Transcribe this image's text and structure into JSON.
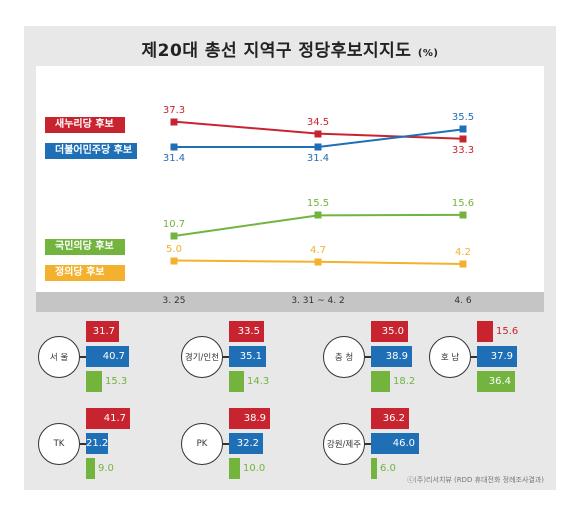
{
  "title": "제20대 총선 지역구 정당후보지지도",
  "title_unit": "(%)",
  "source": "ⓒ(주)리서치뷰 (RDD 휴대전화 정례조사결과)",
  "colors": {
    "saenuri": "#c8242f",
    "minju": "#1f6fb6",
    "gukmin": "#73b43f",
    "jeongui": "#f3b12d"
  },
  "chart_data": [
    {
      "type": "line",
      "x": [
        "3. 25",
        "3. 31 ~ 4. 2",
        "4. 6"
      ],
      "ylim": [
        0,
        40
      ],
      "series": [
        {
          "name": "새누리당 후보",
          "color": "#c8242f",
          "values": [
            37.3,
            34.5,
            33.3
          ],
          "labels": [
            "37.3",
            "34.5",
            "33.3"
          ]
        },
        {
          "name": "더불어민주당 후보",
          "color": "#1f6fb6",
          "values": [
            31.4,
            31.4,
            35.5
          ],
          "labels": [
            "31.4",
            "31.4",
            "35.5"
          ]
        },
        {
          "name": "국민의당 후보",
          "color": "#73b43f",
          "values": [
            10.7,
            15.5,
            15.6
          ],
          "labels": [
            "10.7",
            "15.5",
            "15.6"
          ]
        },
        {
          "name": "정의당 후보",
          "color": "#f3b12d",
          "values": [
            5.0,
            4.7,
            4.2
          ],
          "labels": [
            "5.0",
            "4.7",
            "4.2"
          ]
        }
      ]
    },
    {
      "type": "bar",
      "series_order": [
        "새누리당",
        "더불어민주당",
        "국민의당"
      ],
      "regions": [
        {
          "name": "서 울",
          "values": [
            31.7,
            40.7,
            15.3
          ],
          "labels": [
            "31.7",
            "40.7",
            "15.3"
          ]
        },
        {
          "name": "경기/인천",
          "values": [
            33.5,
            35.1,
            14.3
          ],
          "labels": [
            "33.5",
            "35.1",
            "14.3"
          ]
        },
        {
          "name": "충 청",
          "values": [
            35.0,
            38.9,
            18.2
          ],
          "labels": [
            "35.0",
            "38.9",
            "18.2"
          ]
        },
        {
          "name": "호 남",
          "values": [
            15.6,
            37.9,
            36.4
          ],
          "labels": [
            "15.6",
            "37.9",
            "36.4"
          ]
        },
        {
          "name": "TK",
          "values": [
            41.7,
            21.2,
            9.0
          ],
          "labels": [
            "41.7",
            "21.2",
            "9.0"
          ]
        },
        {
          "name": "PK",
          "values": [
            38.9,
            32.2,
            10.0
          ],
          "labels": [
            "38.9",
            "32.2",
            "10.0"
          ]
        },
        {
          "name": "강원/제주",
          "values": [
            36.2,
            46.0,
            6.0
          ],
          "labels": [
            "36.2",
            "46.0",
            "6.0"
          ]
        }
      ]
    }
  ]
}
